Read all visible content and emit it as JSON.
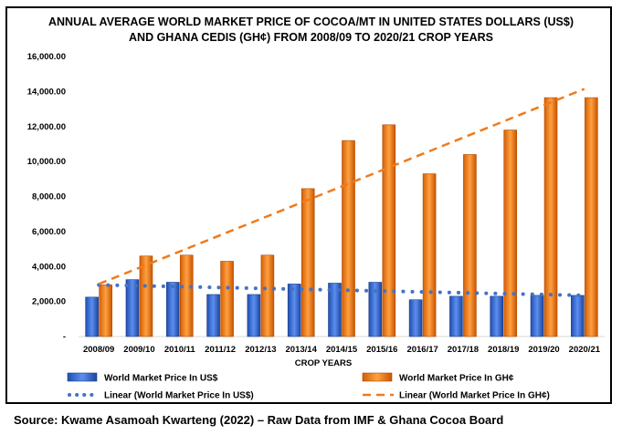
{
  "chart_data": {
    "type": "bar",
    "title_line1": "ANNUAL AVERAGE WORLD MARKET PRICE OF COCOA/MT IN UNITED STATES DOLLARS (US$)",
    "title_line2": "AND GHANA CEDIS (GH¢) FROM 2008/09 TO 2020/21 CROP YEARS",
    "xlabel": "CROP YEARS",
    "ylim": [
      0,
      16000
    ],
    "yticks": [
      "-",
      "2,000.00",
      "4,000.00",
      "6,000.00",
      "8,000.00",
      "10,000.00",
      "12,000.00",
      "14,000.00",
      "16,000.00"
    ],
    "categories": [
      "2008/09",
      "2009/10",
      "2010/11",
      "2011/12",
      "2012/13",
      "2013/14",
      "2014/15",
      "2015/16",
      "2016/17",
      "2017/18",
      "2018/19",
      "2019/20",
      "2020/21"
    ],
    "series": [
      {
        "name": "World Market Price In US$",
        "color": "#3a6fd6",
        "values": [
          2250,
          3250,
          3100,
          2400,
          2400,
          3000,
          3050,
          3100,
          2100,
          2300,
          2300,
          2350,
          2350
        ]
      },
      {
        "name": "World Market Price In GH¢",
        "color": "#f07a1a",
        "values": [
          2950,
          4600,
          4650,
          4300,
          4650,
          8450,
          11200,
          12100,
          9300,
          10400,
          11800,
          13650,
          13650
        ]
      }
    ],
    "trendlines": [
      {
        "name": "Linear (World Market Price In US$)",
        "color": "#4472c4",
        "style": "dotted",
        "start": 2950,
        "end": 2350
      },
      {
        "name": "Linear (World Market Price In GH¢)",
        "color": "#f07a1a",
        "style": "dashed",
        "start": 3000,
        "end": 14150
      }
    ]
  },
  "source": "Source: Kwame Asamoah Kwarteng (2022) – Raw Data from IMF & Ghana Cocoa Board"
}
